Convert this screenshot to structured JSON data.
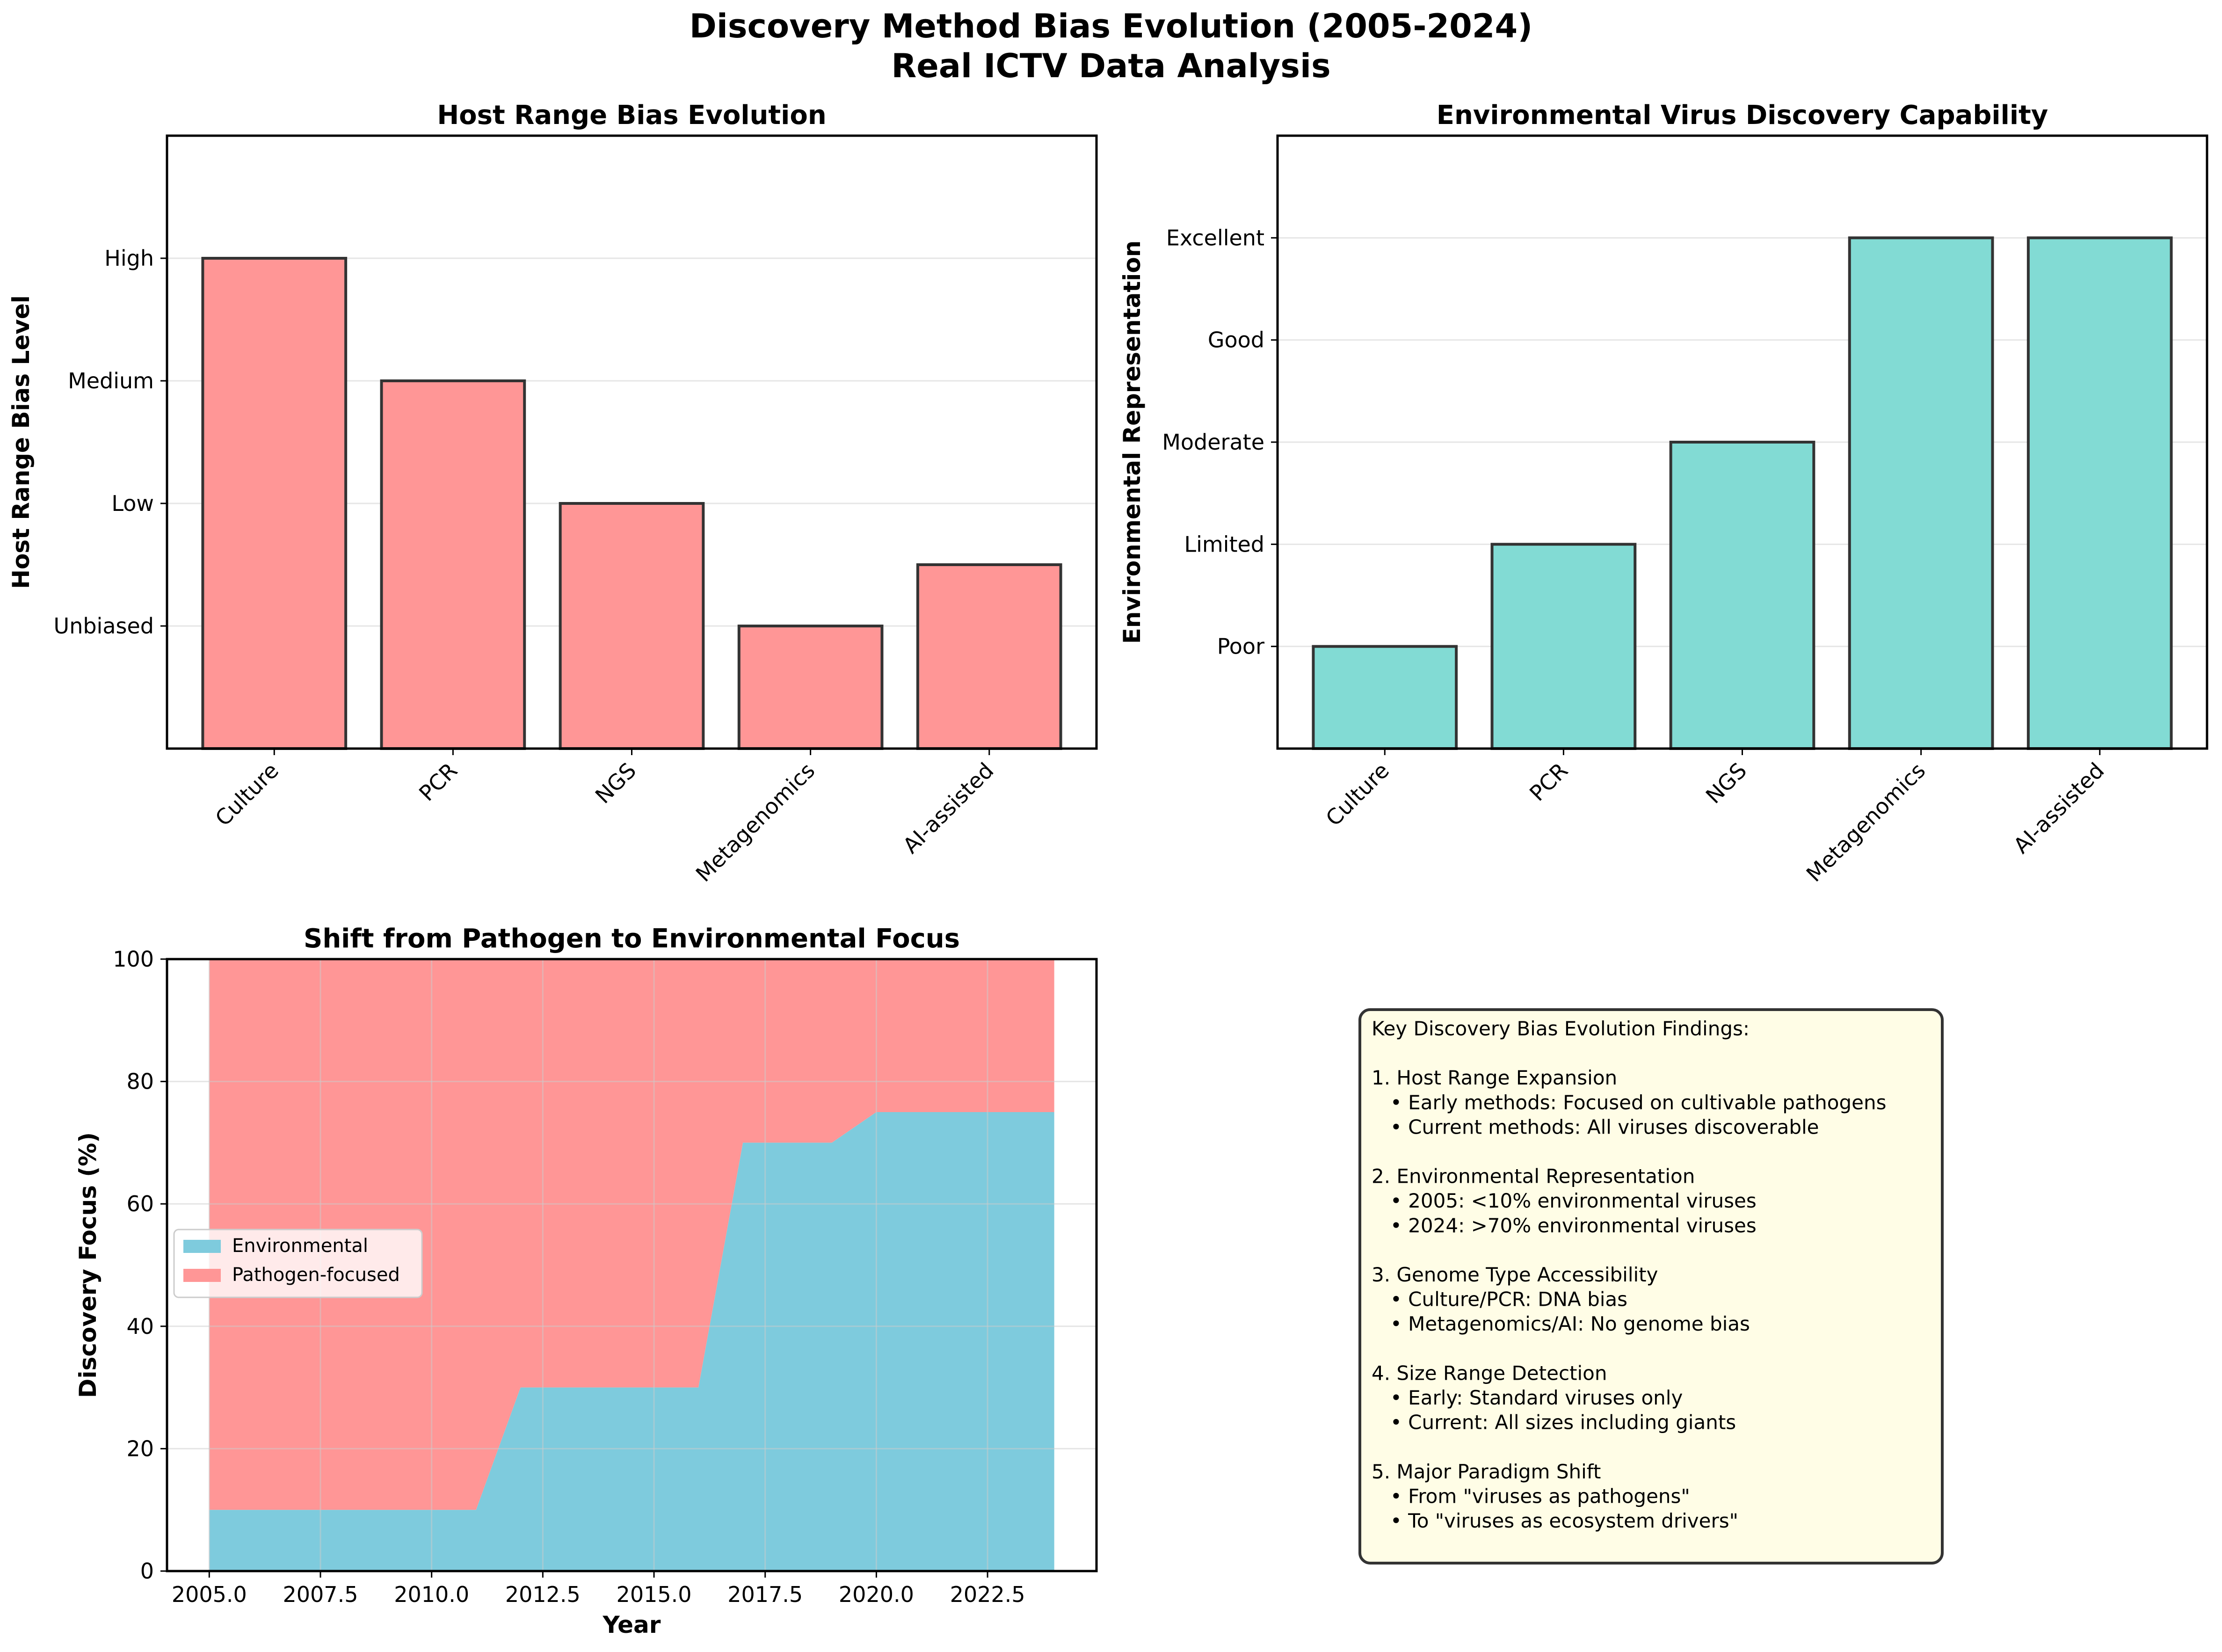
{
  "figure": {
    "title_line1": "Discovery Method Bias Evolution (2005-2024)",
    "title_line2": "Real ICTV Data Analysis"
  },
  "colors": {
    "pathogen": "#ff9696",
    "environmental": "#7ecbdd",
    "teal": "#82dbd4",
    "note_bg": "#fffde6",
    "edge": "#333333"
  },
  "chart_data": [
    {
      "type": "bar",
      "title": "Host Range Bias Evolution",
      "xlabel": "",
      "ylabel": "Host Range Bias Level",
      "categories": [
        "Culture",
        "PCR",
        "NGS",
        "Metagenomics",
        "AI-assisted"
      ],
      "values": [
        4,
        3,
        2,
        1,
        1.5
      ],
      "ylim": [
        0,
        5
      ],
      "yticks": [
        1,
        2,
        3,
        4
      ],
      "yticklabels": [
        "Unbiased",
        "Low",
        "Medium",
        "High"
      ],
      "grid": "y",
      "color": "#ff9696"
    },
    {
      "type": "bar",
      "title": "Environmental Virus Discovery Capability",
      "xlabel": "",
      "ylabel": "Environmental Representation",
      "categories": [
        "Culture",
        "PCR",
        "NGS",
        "Metagenomics",
        "AI-assisted"
      ],
      "values": [
        1,
        2,
        3,
        5,
        5
      ],
      "ylim": [
        0,
        6
      ],
      "yticks": [
        1,
        2,
        3,
        4,
        5
      ],
      "yticklabels": [
        "Poor",
        "Limited",
        "Moderate",
        "Good",
        "Excellent"
      ],
      "grid": "y",
      "color": "#82dbd4"
    },
    {
      "type": "area",
      "title": "Shift from Pathogen to Environmental Focus",
      "xlabel": "Year",
      "ylabel": "Discovery Focus (%)",
      "x": [
        2005,
        2006,
        2007,
        2008,
        2009,
        2010,
        2011,
        2012,
        2013,
        2014,
        2015,
        2016,
        2017,
        2018,
        2019,
        2020,
        2021,
        2022,
        2023,
        2024
      ],
      "series": [
        {
          "name": "Environmental",
          "values": [
            10,
            10,
            10,
            10,
            10,
            10,
            10,
            30,
            30,
            30,
            30,
            30,
            70,
            70,
            70,
            75,
            75,
            75,
            75,
            75
          ]
        },
        {
          "name": "Pathogen-focused",
          "values": [
            90,
            90,
            90,
            90,
            90,
            90,
            90,
            70,
            70,
            70,
            70,
            70,
            30,
            30,
            30,
            25,
            25,
            25,
            25,
            25
          ]
        }
      ],
      "stacked": true,
      "xlim": [
        2004.05,
        2024.95
      ],
      "ylim": [
        0,
        100
      ],
      "xticks": [
        2005.0,
        2007.5,
        2010.0,
        2012.5,
        2015.0,
        2017.5,
        2020.0,
        2022.5
      ],
      "xticklabels": [
        "2005.0",
        "2007.5",
        "2010.0",
        "2012.5",
        "2015.0",
        "2017.5",
        "2020.0",
        "2022.5"
      ],
      "yticks": [
        0,
        20,
        40,
        60,
        80,
        100
      ],
      "yticklabels": [
        "0",
        "20",
        "40",
        "60",
        "80",
        "100"
      ],
      "grid": "both",
      "legend": "center-left"
    }
  ],
  "notes": {
    "lines": [
      "Key Discovery Bias Evolution Findings:",
      "",
      "1. Host Range Expansion",
      "   • Early methods: Focused on cultivable pathogens",
      "   • Current methods: All viruses discoverable",
      "",
      "2. Environmental Representation",
      "   • 2005: <10% environmental viruses",
      "   • 2024: >70% environmental viruses",
      "",
      "3. Genome Type Accessibility",
      "   • Culture/PCR: DNA bias",
      "   • Metagenomics/AI: No genome bias",
      "",
      "4. Size Range Detection",
      "   • Early: Standard viruses only",
      "   • Current: All sizes including giants",
      "",
      "5. Major Paradigm Shift",
      "   • From \"viruses as pathogens\"",
      "   • To \"viruses as ecosystem drivers\""
    ]
  }
}
